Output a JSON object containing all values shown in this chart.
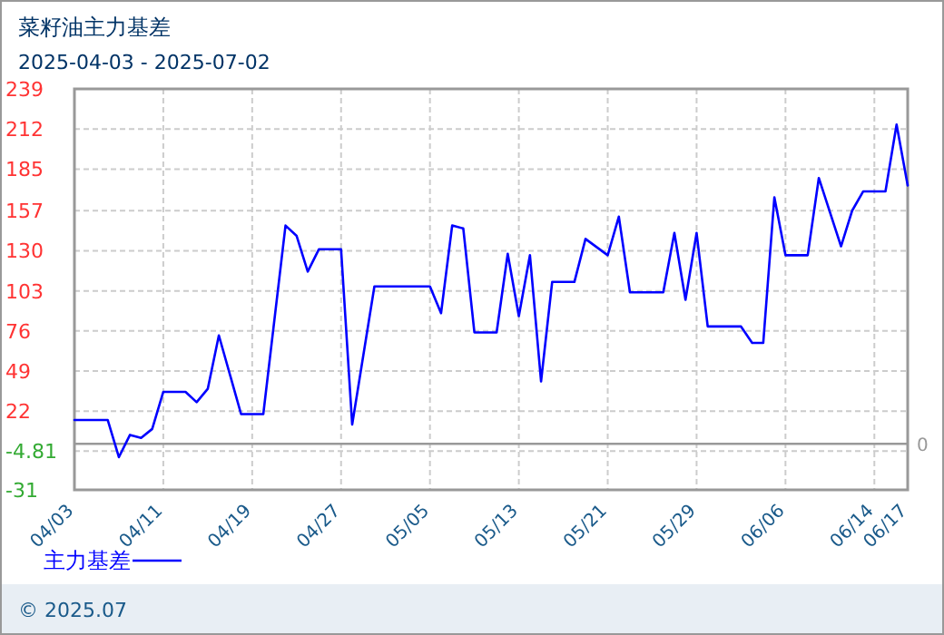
{
  "chart_data": {
    "type": "line",
    "title": "菜籽油主力基差",
    "subtitle": "2025-04-03 - 2025-07-02",
    "x": [
      "2025-04-03",
      "2025-04-06",
      "2025-04-07",
      "2025-04-08",
      "2025-04-09",
      "2025-04-10",
      "2025-04-11",
      "2025-04-13",
      "2025-04-14",
      "2025-04-15",
      "2025-04-16",
      "2025-04-18",
      "2025-04-20",
      "2025-04-22",
      "2025-04-23",
      "2025-04-24",
      "2025-04-25",
      "2025-04-27",
      "2025-04-28",
      "2025-04-30",
      "2025-05-05",
      "2025-05-06",
      "2025-05-07",
      "2025-05-08",
      "2025-05-09",
      "2025-05-11",
      "2025-05-12",
      "2025-05-13",
      "2025-05-14",
      "2025-05-15",
      "2025-05-16",
      "2025-05-18",
      "2025-05-19",
      "2025-05-21",
      "2025-05-22",
      "2025-05-23",
      "2025-05-26",
      "2025-05-27",
      "2025-05-28",
      "2025-05-29",
      "2025-05-30",
      "2025-06-02",
      "2025-06-03",
      "2025-06-04",
      "2025-06-05",
      "2025-06-06",
      "2025-06-08",
      "2025-06-09",
      "2025-06-11",
      "2025-06-12",
      "2025-06-13",
      "2025-06-15",
      "2025-06-16",
      "2025-06-17"
    ],
    "series": [
      {
        "name": "主力基差",
        "color": "#0000ff",
        "values": [
          16,
          16,
          -9,
          6,
          4,
          10,
          35,
          35,
          28,
          37,
          73,
          20,
          20,
          147,
          140,
          116,
          131,
          131,
          13,
          106,
          106,
          88,
          147,
          145,
          75,
          75,
          128,
          86,
          127,
          42,
          109,
          109,
          138,
          127,
          153,
          102,
          102,
          142,
          97,
          142,
          79,
          79,
          68,
          68,
          166,
          127,
          127,
          179,
          133,
          157,
          170,
          170,
          215,
          174
        ]
      }
    ],
    "xlim": [
      "2025-04-03",
      "2025-06-17"
    ],
    "xticks": [
      {
        "value": "2025-04-03",
        "label": "04/03"
      },
      {
        "value": "2025-04-11",
        "label": "04/11"
      },
      {
        "value": "2025-04-19",
        "label": "04/19"
      },
      {
        "value": "2025-04-27",
        "label": "04/27"
      },
      {
        "value": "2025-05-05",
        "label": "05/05"
      },
      {
        "value": "2025-05-13",
        "label": "05/13"
      },
      {
        "value": "2025-05-21",
        "label": "05/21"
      },
      {
        "value": "2025-05-29",
        "label": "05/29"
      },
      {
        "value": "2025-06-06",
        "label": "06/06"
      },
      {
        "value": "2025-06-14",
        "label": "06/14"
      },
      {
        "value": "2025-06-17",
        "label": "06/17"
      }
    ],
    "ylim": [
      -31,
      239
    ],
    "yticks": [
      -31,
      -4.81,
      22,
      49,
      76,
      103,
      130,
      157,
      185,
      212,
      239
    ],
    "ref_lines": [
      {
        "axis": "y",
        "value": 0,
        "label": "0",
        "color": "#999999"
      }
    ],
    "grid": true,
    "legend": "bottom left",
    "marker": "none",
    "line_style": "solid",
    "annotations": [
      "© 2025.07"
    ]
  }
}
